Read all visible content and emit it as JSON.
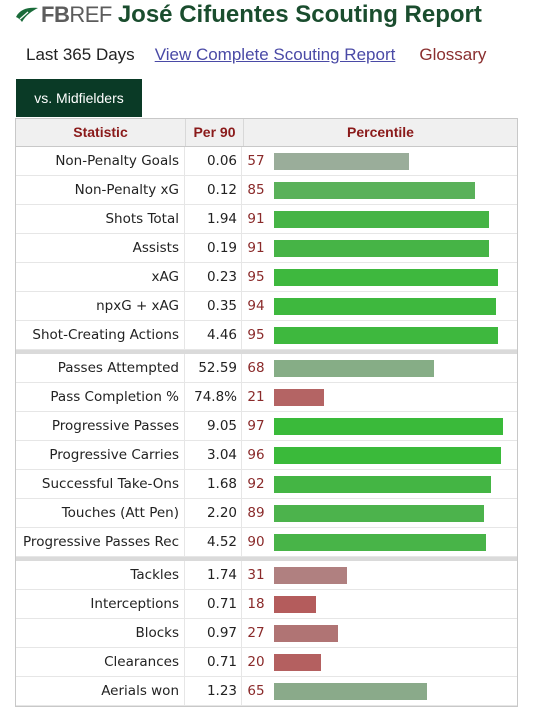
{
  "header": {
    "logo_fb": "FB",
    "logo_ref": "REF",
    "title": "José Cifuentes Scouting Report"
  },
  "links": {
    "period": "Last 365 Days",
    "view_complete": "View Complete Scouting Report",
    "glossary": "Glossary"
  },
  "tab": {
    "label": "vs. Midfielders"
  },
  "table": {
    "headers": {
      "statistic": "Statistic",
      "per90": "Per 90",
      "percentile": "Percentile"
    },
    "groups": [
      [
        {
          "stat": "Non-Penalty Goals",
          "per90": "0.06",
          "pct": 57,
          "color": "#9aad9a"
        },
        {
          "stat": "Non-Penalty xG",
          "per90": "0.12",
          "pct": 85,
          "color": "#5ab15a"
        },
        {
          "stat": "Shots Total",
          "per90": "1.94",
          "pct": 91,
          "color": "#46b446"
        },
        {
          "stat": "Assists",
          "per90": "0.19",
          "pct": 91,
          "color": "#46b446"
        },
        {
          "stat": "xAG",
          "per90": "0.23",
          "pct": 95,
          "color": "#3eb83e"
        },
        {
          "stat": "npxG + xAG",
          "per90": "0.35",
          "pct": 94,
          "color": "#3eb83e"
        },
        {
          "stat": "Shot-Creating Actions",
          "per90": "4.46",
          "pct": 95,
          "color": "#3eb83e"
        }
      ],
      [
        {
          "stat": "Passes Attempted",
          "per90": "52.59",
          "pct": 68,
          "color": "#86ad86"
        },
        {
          "stat": "Pass Completion %",
          "per90": "74.8%",
          "pct": 21,
          "color": "#b46464"
        },
        {
          "stat": "Progressive Passes",
          "per90": "9.05",
          "pct": 97,
          "color": "#3aba3a"
        },
        {
          "stat": "Progressive Carries",
          "per90": "3.04",
          "pct": 96,
          "color": "#3aba3a"
        },
        {
          "stat": "Successful Take-Ons",
          "per90": "1.68",
          "pct": 92,
          "color": "#44b544"
        },
        {
          "stat": "Touches (Att Pen)",
          "per90": "2.20",
          "pct": 89,
          "color": "#4cb34c"
        },
        {
          "stat": "Progressive Passes Rec",
          "per90": "4.52",
          "pct": 90,
          "color": "#48b448"
        }
      ],
      [
        {
          "stat": "Tackles",
          "per90": "1.74",
          "pct": 31,
          "color": "#b08080"
        },
        {
          "stat": "Interceptions",
          "per90": "0.71",
          "pct": 18,
          "color": "#b45c5c"
        },
        {
          "stat": "Blocks",
          "per90": "0.97",
          "pct": 27,
          "color": "#b07474"
        },
        {
          "stat": "Clearances",
          "per90": "0.71",
          "pct": 20,
          "color": "#b46060"
        },
        {
          "stat": "Aerials won",
          "per90": "1.23",
          "pct": 65,
          "color": "#8aaa8a"
        }
      ]
    ]
  }
}
